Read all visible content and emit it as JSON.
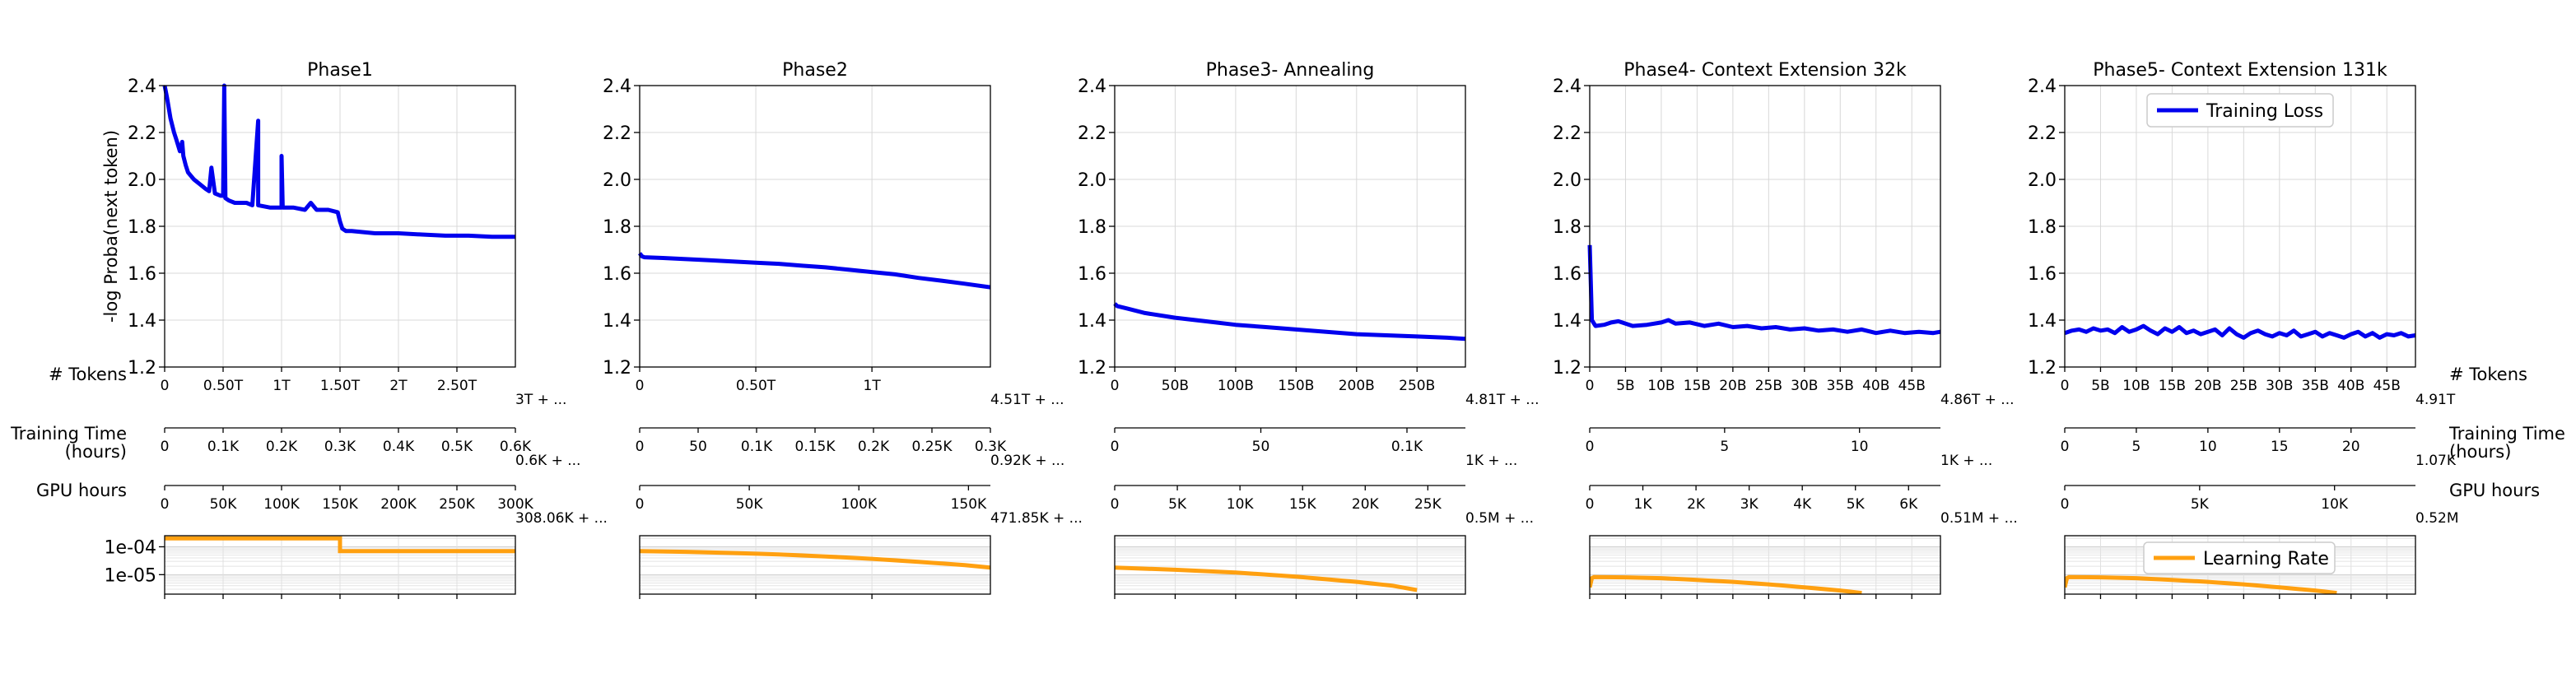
{
  "figure": {
    "side_labels": {
      "left": [
        "# Tokens",
        "Training Time (hours)",
        "GPU hours"
      ],
      "right": [
        "# Tokens",
        "Training Time (hours)",
        "GPU hours"
      ]
    }
  },
  "chart_data": [
    {
      "type": "line",
      "title": "Phase1",
      "ylabel": "-log Proba(next token)",
      "ylim": [
        1.2,
        2.4
      ],
      "yticks": [
        1.2,
        1.4,
        1.6,
        1.8,
        2.0,
        2.2,
        2.4
      ],
      "grid": true,
      "xlim": [
        0,
        3.0
      ],
      "tokens_axis": {
        "ticks": [
          0,
          0.5,
          1.0,
          1.5,
          2.0,
          2.5
        ],
        "labels": [
          "0",
          "0.50T",
          "1T",
          "1.50T",
          "2T",
          "2.50T"
        ],
        "offset_label": "3T + ..."
      },
      "time_axis": {
        "max": 0.6,
        "ticks": [
          0,
          0.1,
          0.2,
          0.3,
          0.4,
          0.5,
          0.6
        ],
        "labels": [
          "0",
          "0.1K",
          "0.2K",
          "0.3K",
          "0.4K",
          "0.5K",
          "0.6K"
        ],
        "offset_label": "0.6K + ..."
      },
      "gpu_axis": {
        "max": 300,
        "ticks": [
          0,
          50,
          100,
          150,
          200,
          250,
          300
        ],
        "labels": [
          "0",
          "50K",
          "100K",
          "150K",
          "200K",
          "250K",
          "300K"
        ],
        "offset_label": "308.06K + ..."
      },
      "series": [
        {
          "name": "Training Loss",
          "color": "#0000ee",
          "x": [
            0,
            0.02,
            0.05,
            0.08,
            0.1,
            0.13,
            0.15,
            0.16,
            0.18,
            0.2,
            0.25,
            0.3,
            0.35,
            0.38,
            0.4,
            0.43,
            0.48,
            0.5,
            0.51,
            0.52,
            0.55,
            0.6,
            0.7,
            0.75,
            0.8,
            0.8,
            0.9,
            1.0,
            1.0,
            1.01,
            1.02,
            1.05,
            1.1,
            1.2,
            1.25,
            1.3,
            1.4,
            1.48,
            1.5,
            1.52,
            1.55,
            1.6,
            1.8,
            2.0,
            2.2,
            2.4,
            2.6,
            2.8,
            3.0
          ],
          "y": [
            2.4,
            2.35,
            2.26,
            2.2,
            2.17,
            2.12,
            2.16,
            2.1,
            2.06,
            2.03,
            2.0,
            1.98,
            1.96,
            1.95,
            2.05,
            1.94,
            1.93,
            1.93,
            2.4,
            1.92,
            1.91,
            1.9,
            1.9,
            1.89,
            2.25,
            1.89,
            1.88,
            1.88,
            2.1,
            1.88,
            1.88,
            1.88,
            1.88,
            1.87,
            1.9,
            1.87,
            1.87,
            1.86,
            1.82,
            1.79,
            1.78,
            1.78,
            1.77,
            1.77,
            1.765,
            1.76,
            1.76,
            1.755,
            1.755
          ]
        }
      ],
      "lr": {
        "name": "Learning Rate",
        "color": "#ffa010",
        "x": [
          0,
          1.5,
          1.5,
          3.0
        ],
        "y": [
          0.0002,
          0.0002,
          7e-05,
          7e-05
        ]
      }
    },
    {
      "type": "line",
      "title": "Phase2",
      "ylim": [
        1.2,
        2.4
      ],
      "yticks": [
        1.2,
        1.4,
        1.6,
        1.8,
        2.0,
        2.2,
        2.4
      ],
      "grid": true,
      "xlim": [
        0,
        1.51
      ],
      "tokens_axis": {
        "ticks": [
          0,
          0.5,
          1.0
        ],
        "labels": [
          "0",
          "0.50T",
          "1T"
        ],
        "offset_label": "4.51T + ..."
      },
      "time_axis": {
        "max": 0.3,
        "ticks": [
          0,
          0.05,
          0.1,
          0.15,
          0.2,
          0.25,
          0.3
        ],
        "labels": [
          "0",
          "50",
          "0.1K",
          "0.15K",
          "0.2K",
          "0.25K",
          "0.3K"
        ],
        "offset_label": "0.92K + ..."
      },
      "gpu_axis": {
        "max": 160,
        "ticks": [
          0,
          50,
          100,
          150
        ],
        "labels": [
          "0",
          "50K",
          "100K",
          "150K"
        ],
        "offset_label": "471.85K + ..."
      },
      "series": [
        {
          "name": "Training Loss",
          "color": "#0000ee",
          "x": [
            0,
            0.01,
            0.02,
            0.1,
            0.2,
            0.3,
            0.4,
            0.5,
            0.6,
            0.7,
            0.8,
            0.9,
            1.0,
            1.1,
            1.2,
            1.3,
            1.4,
            1.51
          ],
          "y": [
            1.685,
            1.672,
            1.668,
            1.665,
            1.66,
            1.655,
            1.65,
            1.645,
            1.64,
            1.632,
            1.625,
            1.615,
            1.605,
            1.595,
            1.58,
            1.568,
            1.555,
            1.54
          ]
        }
      ],
      "lr": {
        "name": "Learning Rate",
        "color": "#ffa010",
        "x": [
          0,
          0.2,
          0.4,
          0.6,
          0.8,
          1.0,
          1.2,
          1.4,
          1.51
        ],
        "y": [
          7e-05,
          6.6e-05,
          6e-05,
          5.3e-05,
          4.5e-05,
          3.7e-05,
          2.9e-05,
          2.2e-05,
          1.8e-05
        ]
      }
    },
    {
      "type": "line",
      "title": "Phase3- Annealing",
      "ylim": [
        1.2,
        2.4
      ],
      "yticks": [
        1.2,
        1.4,
        1.6,
        1.8,
        2.0,
        2.2,
        2.4
      ],
      "grid": true,
      "xlim": [
        0,
        290
      ],
      "tokens_axis": {
        "ticks": [
          0,
          50,
          100,
          150,
          200,
          250
        ],
        "labels": [
          "0",
          "50B",
          "100B",
          "150B",
          "200B",
          "250B"
        ],
        "offset_label": "4.81T + ..."
      },
      "time_axis": {
        "max": 0.12,
        "ticks": [
          0,
          0.05,
          0.1
        ],
        "labels": [
          "0",
          "50",
          "0.1K"
        ],
        "offset_label": "1K + ..."
      },
      "gpu_axis": {
        "max": 28,
        "ticks": [
          0,
          5,
          10,
          15,
          20,
          25
        ],
        "labels": [
          "0",
          "5K",
          "10K",
          "15K",
          "20K",
          "25K"
        ],
        "offset_label": "0.5M + ..."
      },
      "series": [
        {
          "name": "Training Loss",
          "color": "#0000ee",
          "x": [
            0,
            2,
            10,
            25,
            50,
            75,
            100,
            125,
            150,
            175,
            200,
            225,
            250,
            275,
            290
          ],
          "y": [
            1.47,
            1.46,
            1.45,
            1.43,
            1.41,
            1.395,
            1.38,
            1.37,
            1.36,
            1.35,
            1.34,
            1.335,
            1.33,
            1.325,
            1.32
          ]
        }
      ],
      "lr": {
        "name": "Learning Rate",
        "color": "#ffa010",
        "x": [
          0,
          50,
          100,
          150,
          200,
          230,
          250
        ],
        "y": [
          1.8e-05,
          1.5e-05,
          1.2e-05,
          8.5e-06,
          5.5e-06,
          4e-06,
          2.8e-06
        ]
      }
    },
    {
      "type": "line",
      "title": "Phase4- Context Extension 32k",
      "ylim": [
        1.2,
        2.4
      ],
      "yticks": [
        1.2,
        1.4,
        1.6,
        1.8,
        2.0,
        2.2,
        2.4
      ],
      "grid": true,
      "xlim": [
        0,
        49
      ],
      "tokens_axis": {
        "ticks": [
          0,
          5,
          10,
          15,
          20,
          25,
          30,
          35,
          40,
          45
        ],
        "labels": [
          "0",
          "5B",
          "10B",
          "15B",
          "20B",
          "25B",
          "30B",
          "35B",
          "40B",
          "45B"
        ],
        "offset_label": "4.86T + ..."
      },
      "time_axis": {
        "max": 13,
        "ticks": [
          0,
          5,
          10
        ],
        "labels": [
          "0",
          "5",
          "10"
        ],
        "offset_label": "1K + ..."
      },
      "gpu_axis": {
        "max": 6.6,
        "ticks": [
          0,
          1,
          2,
          3,
          4,
          5,
          6
        ],
        "labels": [
          "0",
          "1K",
          "2K",
          "3K",
          "4K",
          "5K",
          "6K"
        ],
        "offset_label": "0.51M + ..."
      },
      "series": [
        {
          "name": "Training Loss",
          "color": "#0000ee",
          "x": [
            0,
            0.3,
            0.8,
            2,
            3,
            4,
            5,
            6,
            8,
            10,
            11,
            12,
            14,
            16,
            18,
            20,
            22,
            24,
            26,
            28,
            30,
            32,
            34,
            36,
            38,
            40,
            42,
            44,
            46,
            48,
            49
          ],
          "y": [
            1.72,
            1.4,
            1.375,
            1.38,
            1.39,
            1.395,
            1.385,
            1.375,
            1.38,
            1.39,
            1.4,
            1.385,
            1.39,
            1.375,
            1.385,
            1.37,
            1.375,
            1.365,
            1.37,
            1.36,
            1.365,
            1.355,
            1.36,
            1.35,
            1.36,
            1.345,
            1.355,
            1.345,
            1.35,
            1.345,
            1.35
          ]
        }
      ],
      "lr": {
        "name": "Learning Rate",
        "color": "#ffa010",
        "x": [
          0,
          0.3,
          0.6,
          5,
          10,
          15,
          20,
          25,
          30,
          35,
          38
        ],
        "y": [
          3.5e-06,
          7.5e-06,
          8.2e-06,
          8e-06,
          7.5e-06,
          6.5e-06,
          5.5e-06,
          4.5e-06,
          3.5e-06,
          2.7e-06,
          2.2e-06
        ]
      }
    },
    {
      "type": "line",
      "title": "Phase5- Context Extension 131k",
      "ylim": [
        1.2,
        2.4
      ],
      "yticks": [
        1.2,
        1.4,
        1.6,
        1.8,
        2.0,
        2.2,
        2.4
      ],
      "grid": true,
      "legend": "top-right",
      "xlim": [
        0,
        49
      ],
      "tokens_axis": {
        "ticks": [
          0,
          5,
          10,
          15,
          20,
          25,
          30,
          35,
          40,
          45
        ],
        "labels": [
          "0",
          "5B",
          "10B",
          "15B",
          "20B",
          "25B",
          "30B",
          "35B",
          "40B",
          "45B"
        ],
        "offset_label": "4.91T"
      },
      "time_axis": {
        "max": 24.5,
        "ticks": [
          0,
          5,
          10,
          15,
          20
        ],
        "labels": [
          "0",
          "5",
          "10",
          "15",
          "20"
        ],
        "offset_label": "1.07K"
      },
      "gpu_axis": {
        "max": 13,
        "ticks": [
          0,
          5,
          10
        ],
        "labels": [
          "0",
          "5K",
          "10K"
        ],
        "offset_label": "0.52M"
      },
      "series": [
        {
          "name": "Training Loss",
          "color": "#0000ee",
          "x": [
            0,
            1,
            2,
            3,
            4,
            5,
            6,
            7,
            8,
            9,
            10,
            11,
            12,
            13,
            14,
            15,
            16,
            17,
            18,
            19,
            20,
            21,
            22,
            23,
            24,
            25,
            26,
            27,
            28,
            29,
            30,
            31,
            32,
            33,
            34,
            35,
            36,
            37,
            38,
            39,
            40,
            41,
            42,
            43,
            44,
            45,
            46,
            47,
            48,
            49
          ],
          "y": [
            1.345,
            1.355,
            1.36,
            1.35,
            1.365,
            1.355,
            1.36,
            1.345,
            1.37,
            1.35,
            1.36,
            1.375,
            1.355,
            1.34,
            1.365,
            1.35,
            1.37,
            1.345,
            1.355,
            1.34,
            1.35,
            1.36,
            1.335,
            1.365,
            1.34,
            1.325,
            1.345,
            1.355,
            1.34,
            1.33,
            1.345,
            1.335,
            1.355,
            1.33,
            1.34,
            1.35,
            1.33,
            1.345,
            1.335,
            1.325,
            1.34,
            1.35,
            1.33,
            1.345,
            1.325,
            1.34,
            1.335,
            1.345,
            1.33,
            1.335
          ]
        }
      ],
      "lr": {
        "name": "Learning Rate",
        "color": "#ffa010",
        "x": [
          0,
          0.3,
          0.6,
          5,
          10,
          15,
          20,
          25,
          30,
          35,
          38
        ],
        "y": [
          3.5e-06,
          7.5e-06,
          8.2e-06,
          8e-06,
          7.5e-06,
          6.5e-06,
          5.5e-06,
          4.5e-06,
          3.5e-06,
          2.7e-06,
          2.2e-06
        ]
      }
    }
  ],
  "lr_axis": {
    "ylim": [
      2e-06,
      0.00025
    ],
    "yticks": [
      0.0001,
      1e-05
    ],
    "yticklabels": [
      "1e-04",
      "1e-05"
    ],
    "log": true,
    "grid": true
  }
}
